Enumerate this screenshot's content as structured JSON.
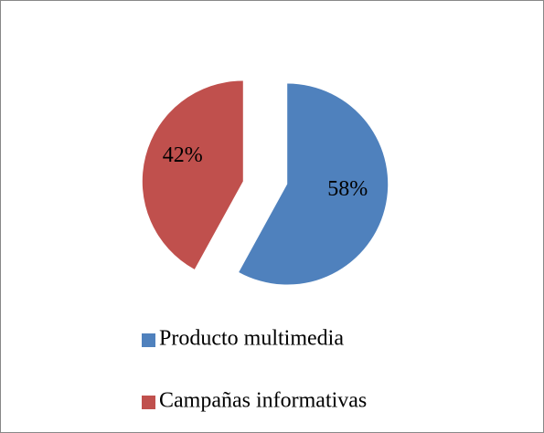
{
  "chart_data": {
    "type": "pie",
    "categories": [
      "Producto multimedia",
      "Campañas informativas"
    ],
    "values": [
      58,
      42
    ],
    "value_labels": [
      "58%",
      "42%"
    ],
    "colors": [
      "#4f81bd",
      "#c0504d"
    ],
    "legend": "bottom"
  }
}
